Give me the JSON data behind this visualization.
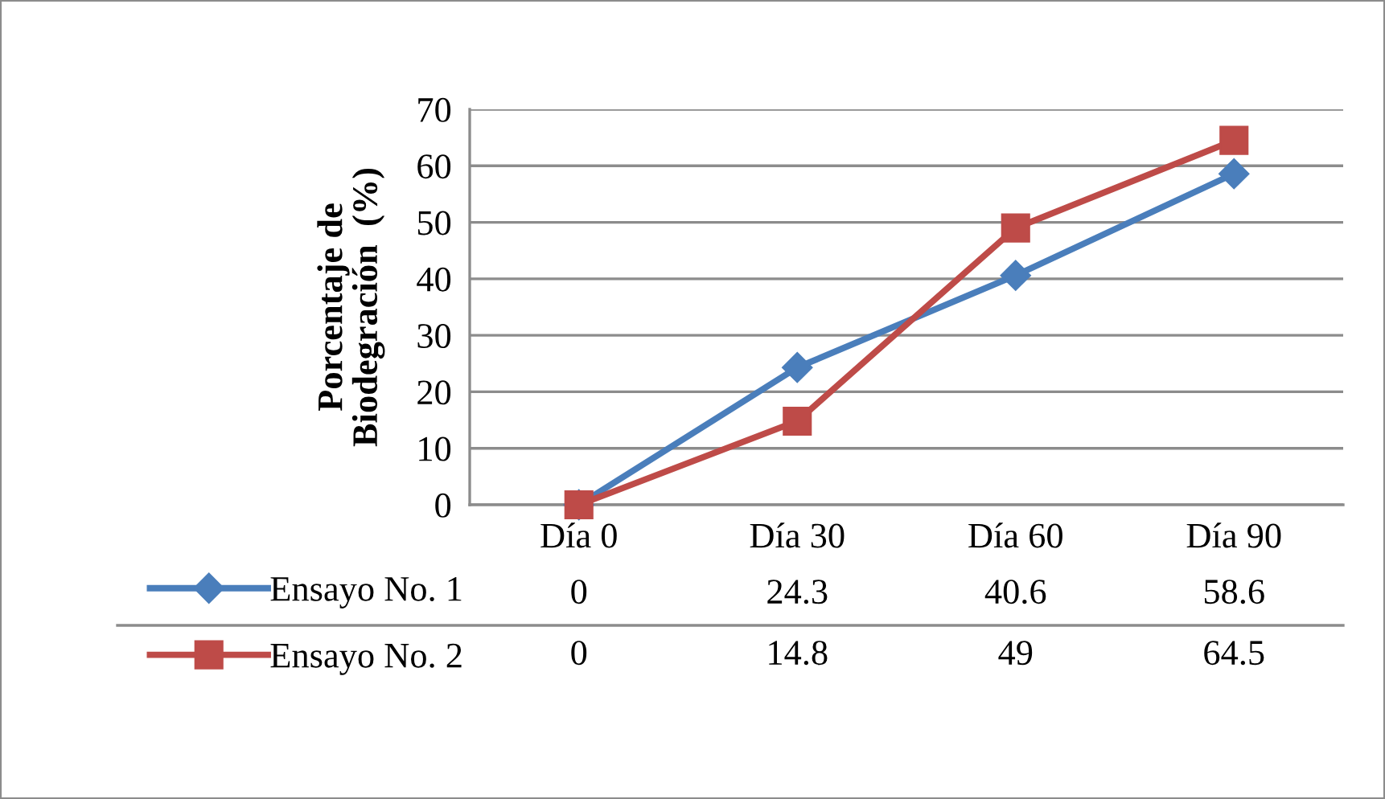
{
  "chart_data": {
    "type": "line",
    "ylabel": "Porcentaje de\nBiodegración  (%)",
    "categories": [
      "Día 0",
      "Día 30",
      "Día 60",
      "Día 90"
    ],
    "series": [
      {
        "name": "Ensayo No. 1",
        "color": "#4a7ebb",
        "marker": "diamond",
        "values": [
          0,
          24.3,
          40.6,
          58.6
        ]
      },
      {
        "name": "Ensayo No. 2",
        "color": "#be4b48",
        "marker": "square",
        "values": [
          0,
          14.8,
          49,
          64.5
        ]
      }
    ],
    "ylim": [
      0,
      70
    ],
    "yticks": [
      0,
      10,
      20,
      30,
      40,
      50,
      60,
      70
    ],
    "grid": "y",
    "legend": "bottom",
    "data_labels": true
  }
}
